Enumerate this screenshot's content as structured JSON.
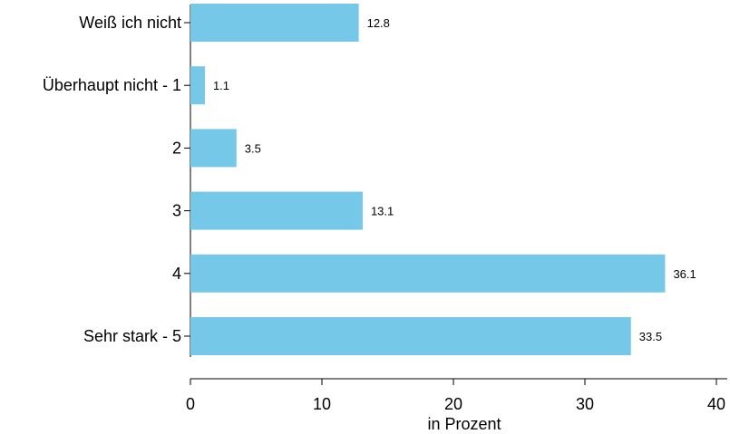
{
  "chart_data": {
    "type": "bar",
    "orientation": "horizontal",
    "categories": [
      "Weiß ich nicht",
      "Überhaupt nicht - 1",
      "2",
      "3",
      "4",
      "Sehr stark - 5"
    ],
    "values": [
      12.8,
      1.1,
      3.5,
      13.1,
      36.1,
      33.5
    ],
    "value_labels": [
      "12.8",
      "1.1",
      "3.5",
      "13.1",
      "36.1",
      "33.5"
    ],
    "xlabel": "in Prozent",
    "ylabel": "",
    "xlim": [
      0,
      40
    ],
    "xticks": [
      0,
      10,
      20,
      30,
      40
    ],
    "xtick_labels": [
      "0",
      "10",
      "20",
      "30",
      "40"
    ],
    "bar_color": "#75c8e8",
    "grid": false,
    "legend": "none"
  }
}
